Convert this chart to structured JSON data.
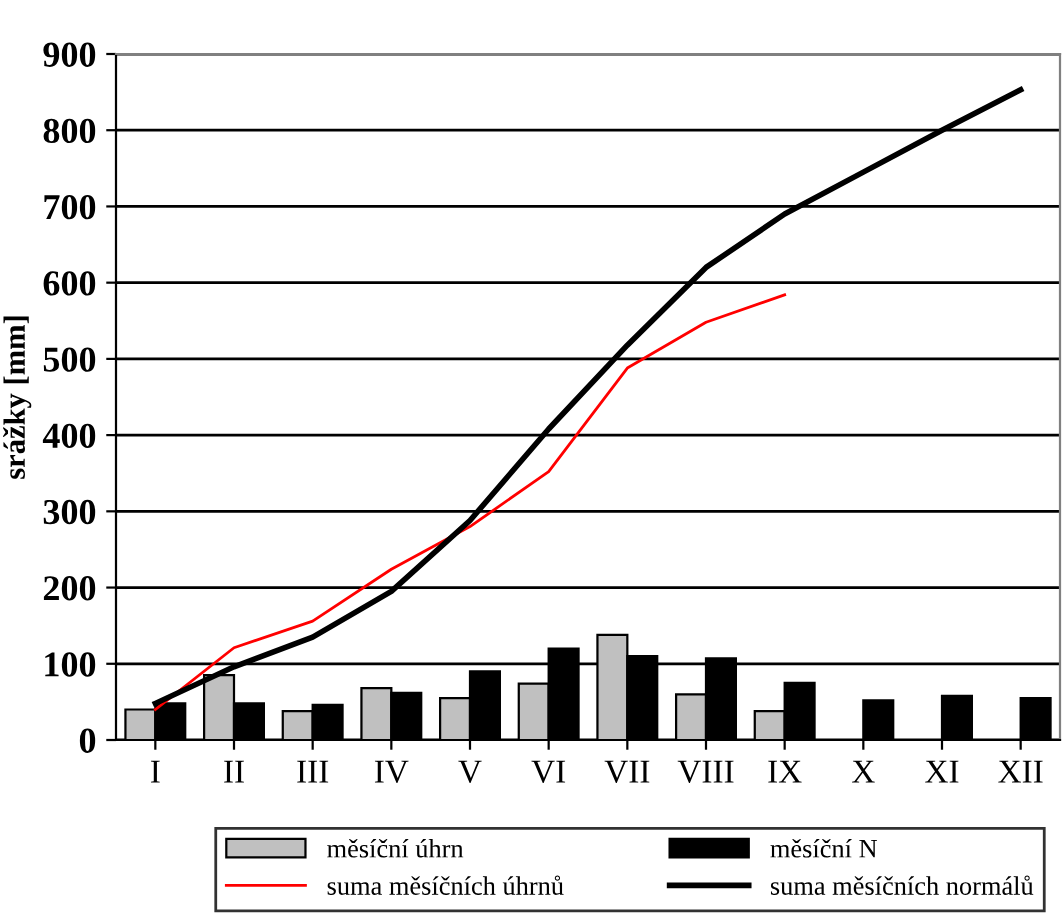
{
  "chart_data": {
    "type": "bar",
    "ylabel": "srážky [mm]",
    "categories": [
      "I",
      "II",
      "III",
      "IV",
      "V",
      "VI",
      "VII",
      "VIII",
      "IX",
      "X",
      "XI",
      "XII"
    ],
    "series": [
      {
        "name": "měsíční úhrn",
        "color": "#c0c0c0",
        "values": [
          40,
          85,
          38,
          68,
          55,
          74,
          138,
          60,
          38,
          null,
          null,
          null
        ]
      },
      {
        "name": "měsíční N",
        "color": "#000000",
        "values": [
          48,
          48,
          46,
          62,
          90,
          120,
          110,
          107,
          75,
          52,
          58,
          55
        ]
      },
      {
        "name": "suma měsíčních úhrnů",
        "type": "line",
        "color": "#ff0000",
        "values": [
          40,
          121,
          156,
          224,
          280,
          352,
          488,
          548,
          584,
          null,
          null,
          null
        ]
      },
      {
        "name": "suma měsíčních normálů",
        "type": "line",
        "color": "#000000",
        "values": [
          48,
          96,
          135,
          195,
          288,
          408,
          518,
          620,
          690,
          745,
          800,
          853
        ]
      }
    ],
    "ylim": [
      0,
      900
    ],
    "yticks": [
      0,
      100,
      200,
      300,
      400,
      500,
      600,
      700,
      800,
      900
    ],
    "grid": "y",
    "legend": "bottom"
  }
}
